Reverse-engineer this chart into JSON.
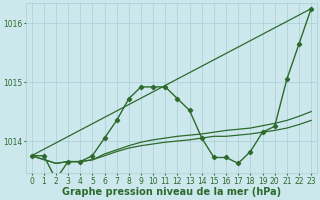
{
  "background_color": "#cde8ec",
  "grid_color": "#a8cdd4",
  "line_color": "#2d6a2d",
  "xlabel": "Graphe pression niveau de la mer (hPa)",
  "xlabel_fontsize": 7,
  "tick_fontsize": 5.5,
  "ylim": [
    1013.45,
    1016.35
  ],
  "xlim": [
    -0.5,
    23.5
  ],
  "yticks": [
    1014,
    1015,
    1016
  ],
  "xticks": [
    0,
    1,
    2,
    3,
    4,
    5,
    6,
    7,
    8,
    9,
    10,
    11,
    12,
    13,
    14,
    15,
    16,
    17,
    18,
    19,
    20,
    21,
    22,
    23
  ],
  "series": [
    {
      "name": "main_curve",
      "x": [
        0,
        1,
        2,
        3,
        4,
        5,
        6,
        7,
        8,
        9,
        10,
        11,
        12,
        13,
        14,
        15,
        16,
        17,
        18,
        19,
        20,
        21,
        22,
        23
      ],
      "y": [
        1013.75,
        1013.75,
        1013.35,
        1013.65,
        1013.65,
        1013.75,
        1014.05,
        1014.35,
        1014.72,
        1014.92,
        1014.92,
        1014.92,
        1014.72,
        1014.52,
        1014.05,
        1013.72,
        1013.72,
        1013.62,
        1013.82,
        1014.15,
        1014.25,
        1015.05,
        1015.65,
        1016.25
      ],
      "style": "line_marker",
      "linewidth": 1.0,
      "markersize": 2.2
    },
    {
      "name": "diagonal_line",
      "x": [
        0,
        23
      ],
      "y": [
        1013.75,
        1016.25
      ],
      "style": "line_only",
      "linewidth": 0.9
    },
    {
      "name": "flat_line1",
      "x": [
        0,
        2,
        3,
        4,
        5,
        6,
        7,
        8,
        9,
        10,
        11,
        12,
        13,
        14,
        15,
        16,
        17,
        18,
        19,
        20,
        21,
        22,
        23
      ],
      "y": [
        1013.75,
        1013.62,
        1013.65,
        1013.65,
        1013.68,
        1013.75,
        1013.82,
        1013.88,
        1013.92,
        1013.95,
        1013.98,
        1014.0,
        1014.02,
        1014.05,
        1014.08,
        1014.08,
        1014.1,
        1014.12,
        1014.15,
        1014.18,
        1014.22,
        1014.28,
        1014.35
      ],
      "style": "line_only",
      "linewidth": 0.9
    },
    {
      "name": "flat_line2",
      "x": [
        0,
        2,
        3,
        4,
        5,
        6,
        7,
        8,
        9,
        10,
        11,
        12,
        13,
        14,
        15,
        16,
        17,
        18,
        19,
        20,
        21,
        22,
        23
      ],
      "y": [
        1013.75,
        1013.62,
        1013.65,
        1013.65,
        1013.68,
        1013.78,
        1013.85,
        1013.92,
        1013.98,
        1014.02,
        1014.05,
        1014.08,
        1014.1,
        1014.12,
        1014.15,
        1014.18,
        1014.2,
        1014.22,
        1014.26,
        1014.3,
        1014.35,
        1014.42,
        1014.5
      ],
      "style": "line_only",
      "linewidth": 0.9
    }
  ]
}
